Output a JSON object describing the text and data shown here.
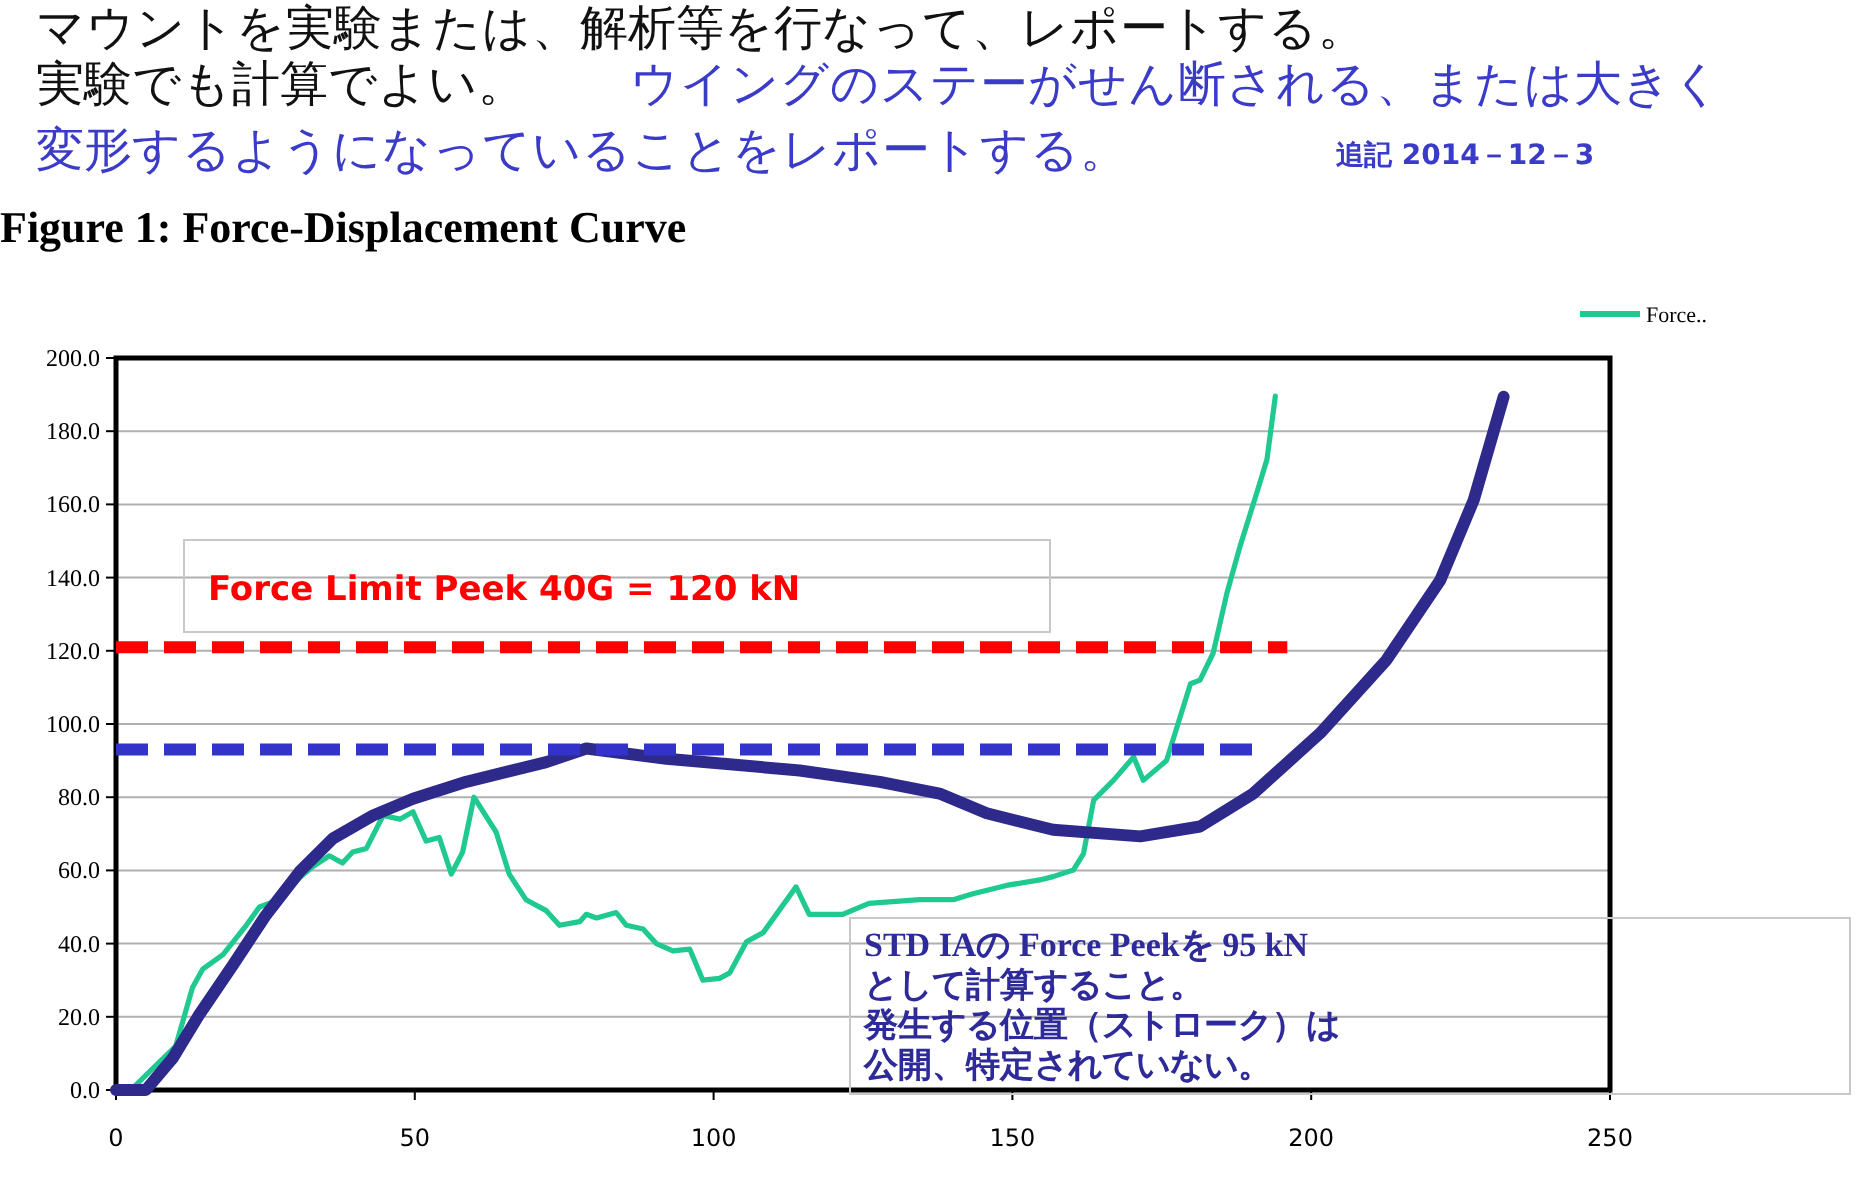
{
  "chart_data": {
    "type": "line",
    "title": "Figure 1: Force-Displacement Curve",
    "xlim": [
      0,
      250
    ],
    "xticks": [
      0,
      50,
      100,
      150,
      200,
      250
    ],
    "ylim": [
      0,
      200
    ],
    "yticks": [
      {
        "value": 0,
        "label": "0.0"
      },
      {
        "value": 20,
        "label": "20.0"
      },
      {
        "value": 40,
        "label": "40.0"
      },
      {
        "value": 60,
        "label": "60.0"
      },
      {
        "value": 80,
        "label": "80.0"
      },
      {
        "value": 100,
        "label": "100.0"
      },
      {
        "value": 120,
        "label": "120.0"
      },
      {
        "value": 140,
        "label": "140.0"
      },
      {
        "value": 160,
        "label": "160.0"
      },
      {
        "value": 180,
        "label": "180.0"
      },
      {
        "value": 200,
        "label": "200.0"
      }
    ],
    "grid": "y",
    "legend": "top right",
    "line_style": "solid",
    "marker": "none",
    "series": [
      {
        "name": "Force..",
        "color": "#1fc98f",
        "x": [
          0,
          2.8,
          10,
          12.8,
          14.5,
          17.9,
          21.8,
          24,
          27.3,
          30.7,
          32.9,
          35.7,
          37.9,
          39.6,
          41.9,
          44.7,
          47.5,
          49.7,
          51.9,
          54.1,
          56.1,
          58,
          59.9,
          63.6,
          65.8,
          68.6,
          72,
          74.2,
          77.6,
          78.7,
          80.4,
          83.7,
          85.4,
          88.2,
          90.4,
          93.2,
          96,
          98.2,
          101,
          102.7,
          105.5,
          108.3,
          113.8,
          116,
          121.6,
          126,
          134.5,
          140.1,
          143.4,
          149,
          154.6,
          156.8,
          160.2,
          161.9,
          163.6,
          166.9,
          170.3,
          171.9,
          175.8,
          179.8,
          181.4,
          183.6,
          185.9,
          188.1,
          190.9,
          192.6,
          194
        ],
        "values": [
          0,
          0.5,
          12,
          28,
          33,
          37,
          45,
          50,
          52,
          58,
          61,
          64,
          62,
          65,
          66,
          75,
          74,
          76,
          68,
          69,
          59,
          65,
          80,
          70.5,
          59,
          52,
          49,
          45,
          46,
          48,
          47,
          48.5,
          45,
          44,
          40,
          38,
          38.5,
          30,
          30.5,
          32,
          40.5,
          43,
          55.5,
          48,
          48,
          51,
          52,
          52,
          53.6,
          55.9,
          57.4,
          58.3,
          60.1,
          64.6,
          79.2,
          84.6,
          91,
          84.6,
          90,
          111,
          112,
          119.4,
          135.8,
          148.6,
          163.2,
          172.3,
          189.6
        ]
      },
      {
        "color": "#2e2a8c",
        "x": [
          0,
          5,
          9.5,
          13.9,
          19.5,
          25.1,
          30.7,
          36.3,
          43,
          49.7,
          58.6,
          72,
          78.7,
          92.1,
          114.4,
          127.8,
          137.8,
          145.7,
          156.8,
          171.4,
          181.4,
          190.3,
          201.5,
          212.6,
          221.6,
          227.2,
          232.2
        ],
        "values": [
          0,
          0,
          8.7,
          20.5,
          34,
          47.8,
          59.6,
          68.7,
          75,
          79.6,
          84.2,
          89.6,
          93.3,
          90.5,
          87.3,
          84.2,
          81,
          75.6,
          71.1,
          69.3,
          72,
          81,
          97.5,
          117.5,
          139.3,
          161.2,
          189.4
        ]
      },
      {
        "color": "#ff0000",
        "line_style": "dashed",
        "x": [
          0,
          196
        ],
        "values": [
          121,
          121
        ]
      },
      {
        "color": "#3333cc",
        "line_style": "dashed",
        "x": [
          0,
          191
        ],
        "values": [
          93,
          93
        ]
      }
    ],
    "annotations": [
      "マウントを実験または、解析等を行なって、レポートする。",
      "実験でも計算でよい。",
      "ウイングのステーがせん断される、または大きく",
      "変形するようになっていることをレポートする。",
      "追記 2014－12－3",
      "Force Limit Peek  40G = 120  kN",
      "STD  IAの  Force Peekを  95 kN",
      "として計算すること。",
      "発生する位置（ストローク）は",
      "公開、特定されていない。"
    ]
  }
}
